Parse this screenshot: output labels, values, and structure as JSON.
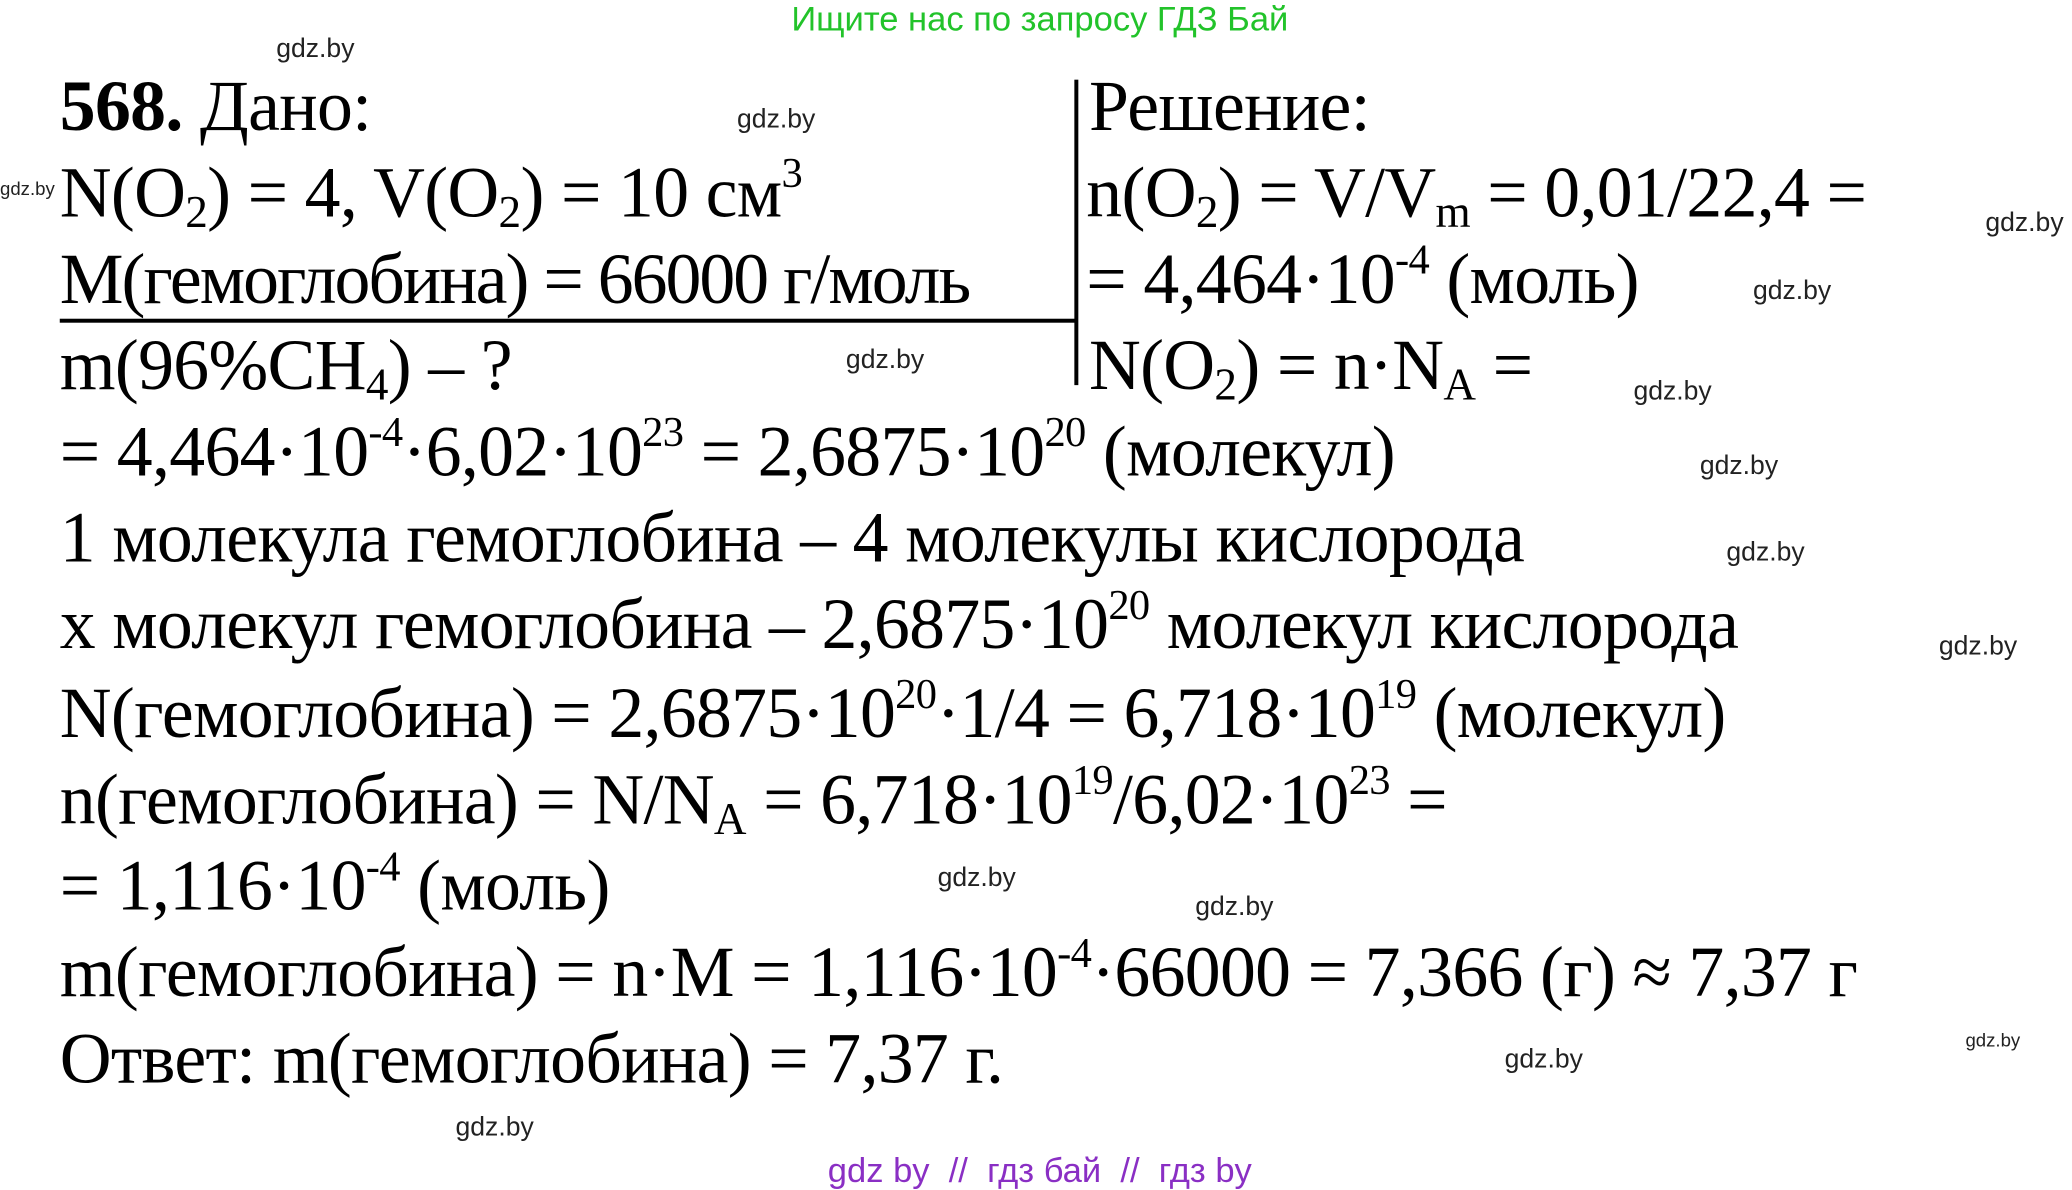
{
  "header": {
    "text": "Ищите нас по запросу ГДЗ Бай",
    "color": "#22c32a"
  },
  "footer": {
    "text": "gdz by  //  гдз бай  //  гдз by",
    "color": "#8a2fc4"
  },
  "watermark": {
    "text": "gdz.by"
  },
  "given": [
    [
      [
        "568.",
        "bold"
      ],
      [
        " Дано:",
        ""
      ]
    ],
    [
      [
        "N(O",
        ""
      ],
      [
        "2",
        "sub"
      ],
      [
        ") = 4, V(O",
        ""
      ],
      [
        "2",
        "sub"
      ],
      [
        ") = 10 см",
        ""
      ],
      [
        "3",
        "sup"
      ]
    ],
    [
      [
        "M(гемоглобина) = 66000 г/моль",
        ""
      ]
    ],
    [
      [
        "m(96%CH",
        ""
      ],
      [
        "4",
        "sub"
      ],
      [
        ") – ?",
        ""
      ]
    ]
  ],
  "solution": [
    [
      [
        "Решение:",
        ""
      ]
    ],
    [
      [
        "n(O",
        ""
      ],
      [
        "2",
        "sub"
      ],
      [
        ") = V/V",
        ""
      ],
      [
        "m",
        "sub"
      ],
      [
        " = 0,01/22,4 =",
        ""
      ]
    ],
    [
      [
        "= 4,464·10",
        ""
      ],
      [
        "-4",
        "sup"
      ],
      [
        " (моль)",
        ""
      ]
    ],
    [
      [
        "N(O",
        ""
      ],
      [
        "2",
        "sub"
      ],
      [
        ") = n·N",
        ""
      ],
      [
        "A",
        "sub"
      ],
      [
        " =",
        ""
      ]
    ]
  ],
  "body": [
    [
      [
        "= 4,464·10",
        ""
      ],
      [
        "-4",
        "sup"
      ],
      [
        "·6,02·10",
        ""
      ],
      [
        "23",
        "sup"
      ],
      [
        " = 2,6875·10",
        ""
      ],
      [
        "20",
        "sup"
      ],
      [
        " (молекул)",
        ""
      ]
    ],
    [
      [
        "1 молекула гемоглобина – 4 молекулы кислорода",
        ""
      ]
    ],
    [
      [
        "x молекул гемоглобина – 2,6875·10",
        ""
      ],
      [
        "20",
        "sup"
      ],
      [
        " молекул кислорода",
        ""
      ]
    ],
    [
      [
        "N(гемоглобина) = 2,6875·10",
        ""
      ],
      [
        "20",
        "sup"
      ],
      [
        "·1/4 = 6,718·10",
        ""
      ],
      [
        "19",
        "sup"
      ],
      [
        " (молекул)",
        ""
      ]
    ],
    [
      [
        "n(гемоглобина) = N/N",
        ""
      ],
      [
        "A",
        "sub"
      ],
      [
        " = 6,718·10",
        ""
      ],
      [
        "19",
        "sup"
      ],
      [
        "/6,02·10",
        ""
      ],
      [
        "23",
        "sup"
      ],
      [
        " =",
        ""
      ]
    ],
    [
      [
        "= 1,116·10",
        ""
      ],
      [
        "-4",
        "sup"
      ],
      [
        " (моль)",
        ""
      ]
    ],
    [
      [
        "m(гемоглобина) = n·M = 1,116·10",
        ""
      ],
      [
        "-4",
        "sup"
      ],
      [
        "·66000 = 7,366 (г) ≈ 7,37 г",
        ""
      ]
    ],
    [
      [
        "Ответ: m(гемоглобина) = 7,37 г.",
        ""
      ]
    ]
  ]
}
